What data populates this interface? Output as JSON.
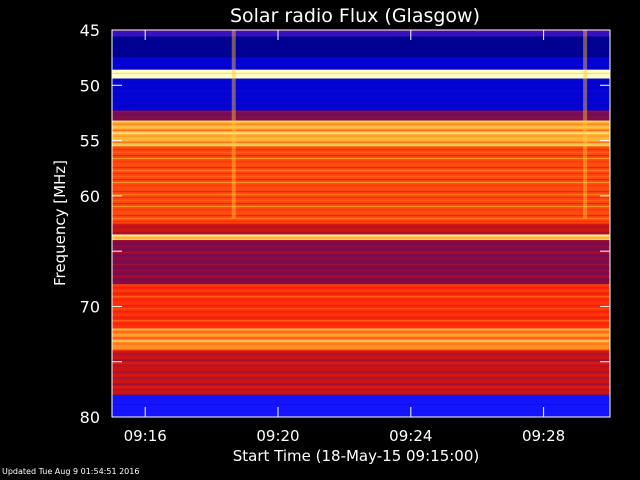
{
  "chart_data": {
    "type": "heatmap",
    "title": "Solar radio Flux (Glasgow)",
    "ylabel": "Frequency [MHz]",
    "xlabel": "Start Time (18-May-15 09:15:00)",
    "y_axis": {
      "range": [
        45,
        80
      ],
      "inverted": true,
      "ticks": [
        45,
        50,
        55,
        60,
        65,
        70,
        75,
        80
      ],
      "tick_labels": [
        "45",
        "50",
        "55",
        "60",
        "",
        "70",
        "",
        "80"
      ]
    },
    "x_axis": {
      "range": [
        "09:15:00",
        "09:30:00"
      ],
      "ticks": [
        "09:16",
        "09:20",
        "09:24",
        "09:28"
      ]
    },
    "colormap": [
      "#00006e",
      "#0000c8",
      "#1414ff",
      "#6e0a5a",
      "#c81414",
      "#ff1e0a",
      "#ff6414",
      "#ffc83c",
      "#ffffc8"
    ],
    "frequency_profile": [
      {
        "from_mhz": 45.0,
        "to_mhz": 45.6,
        "level": 0.3,
        "label": "upper edge"
      },
      {
        "from_mhz": 45.6,
        "to_mhz": 47.5,
        "level": 0.05
      },
      {
        "from_mhz": 47.5,
        "to_mhz": 48.6,
        "level": 0.15
      },
      {
        "from_mhz": 48.6,
        "to_mhz": 49.4,
        "level": 1.0,
        "label": "strong emission line"
      },
      {
        "from_mhz": 49.4,
        "to_mhz": 52.3,
        "level": 0.15
      },
      {
        "from_mhz": 52.3,
        "to_mhz": 53.2,
        "level": 0.4
      },
      {
        "from_mhz": 53.2,
        "to_mhz": 55.5,
        "level": 0.85
      },
      {
        "from_mhz": 55.5,
        "to_mhz": 62.5,
        "level": 0.7
      },
      {
        "from_mhz": 62.5,
        "to_mhz": 63.5,
        "level": 0.5
      },
      {
        "from_mhz": 63.5,
        "to_mhz": 64.0,
        "level": 0.9,
        "label": "bright line ~64 MHz"
      },
      {
        "from_mhz": 64.0,
        "to_mhz": 68.0,
        "level": 0.4
      },
      {
        "from_mhz": 68.0,
        "to_mhz": 72.0,
        "level": 0.65
      },
      {
        "from_mhz": 72.0,
        "to_mhz": 74.0,
        "level": 0.8
      },
      {
        "from_mhz": 74.0,
        "to_mhz": 78.0,
        "level": 0.5
      },
      {
        "from_mhz": 78.0,
        "to_mhz": 80.0,
        "level": 0.25
      }
    ],
    "time_features": [
      {
        "time": "09:18:40",
        "label": "short vertical streak"
      },
      {
        "time": "09:29:15",
        "label": "short vertical streak"
      }
    ],
    "grid": false,
    "legend": "none"
  },
  "footer": {
    "updated": "Updated Tue Aug  9 01:54:51 2016"
  }
}
